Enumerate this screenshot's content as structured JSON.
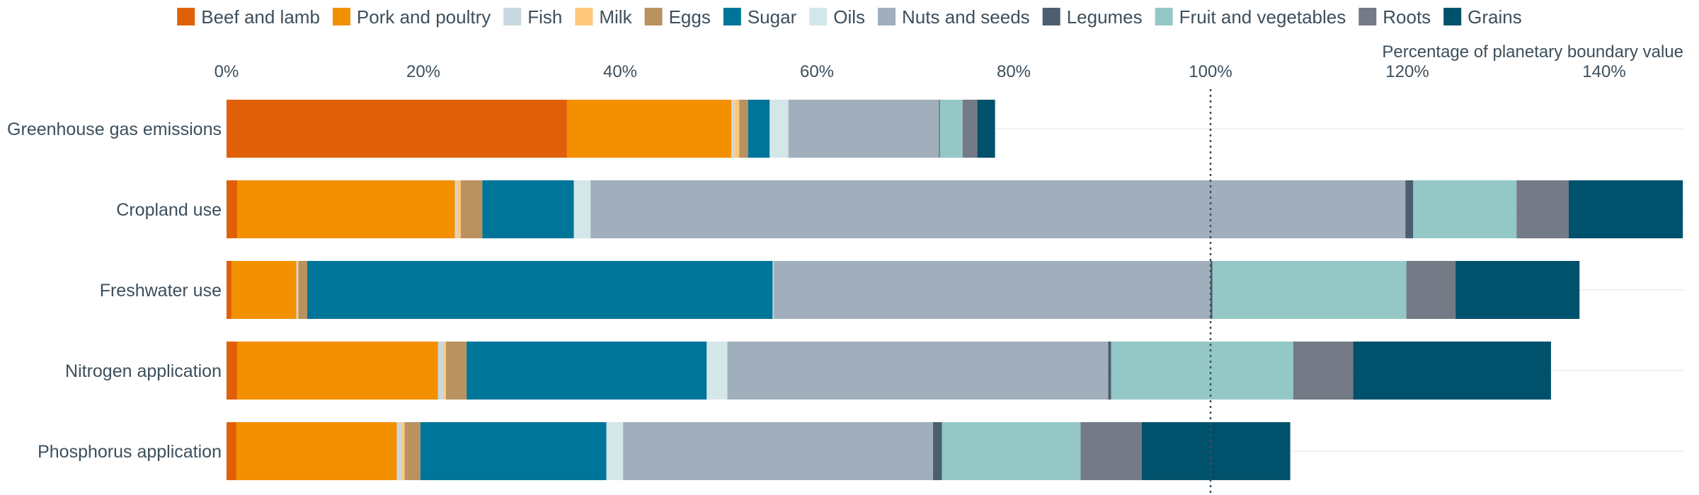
{
  "chart_data": {
    "type": "bar",
    "orientation": "horizontal",
    "stacked": true,
    "xlabel": "Percentage of planetary boundary value",
    "xlim": [
      0,
      148
    ],
    "x_ticks": [
      0,
      20,
      40,
      60,
      80,
      100,
      120,
      140
    ],
    "x_tick_labels": [
      "0%",
      "20%",
      "40%",
      "60%",
      "80%",
      "100%",
      "120%",
      "140%"
    ],
    "reference_line": {
      "value": 100,
      "style": "dotted"
    },
    "grid": false,
    "legend_position": "top",
    "categories": [
      "Greenhouse gas emissions",
      "Cropland use",
      "Freshwater use",
      "Nitrogen application",
      "Phosphorus application"
    ],
    "series": [
      {
        "name": "Beef and lamb",
        "color": "#e0600a",
        "values": [
          34.6,
          1.1,
          0.5,
          1.1,
          1.0
        ]
      },
      {
        "name": "Pork and poultry",
        "color": "#f39000",
        "values": [
          16.7,
          22.1,
          6.6,
          20.4,
          16.3
        ]
      },
      {
        "name": "Fish",
        "color": "#c8d7e0",
        "values": [
          0.3,
          0.2,
          0.1,
          0.6,
          0.5
        ]
      },
      {
        "name": "Milk",
        "color": "#fdc87c",
        "values": [
          0.5,
          0.4,
          0.1,
          0.2,
          0.3
        ]
      },
      {
        "name": "Eggs",
        "color": "#b99260",
        "values": [
          0.9,
          2.2,
          0.9,
          2.1,
          1.6
        ]
      },
      {
        "name": "Sugar",
        "color": "#00759a",
        "values": [
          2.2,
          9.3,
          47.3,
          24.4,
          18.9
        ]
      },
      {
        "name": "Oils",
        "color": "#d4e7e8",
        "values": [
          1.9,
          1.7,
          0.1,
          2.1,
          1.7
        ]
      },
      {
        "name": "Nuts and seeds",
        "color": "#a1aebb",
        "values": [
          15.3,
          82.8,
          44.4,
          38.7,
          31.5
        ]
      },
      {
        "name": "Legumes",
        "color": "#4b5f70",
        "values": [
          0.1,
          0.8,
          0.2,
          0.3,
          0.9
        ]
      },
      {
        "name": "Fruit and vegetables",
        "color": "#94c8c7",
        "values": [
          2.3,
          10.5,
          19.7,
          18.5,
          14.1
        ]
      },
      {
        "name": "Roots",
        "color": "#747b86",
        "values": [
          1.5,
          5.3,
          5.0,
          6.1,
          6.2
        ]
      },
      {
        "name": "Grains",
        "color": "#00516b",
        "values": [
          1.8,
          11.6,
          12.6,
          20.1,
          15.1
        ]
      }
    ]
  }
}
